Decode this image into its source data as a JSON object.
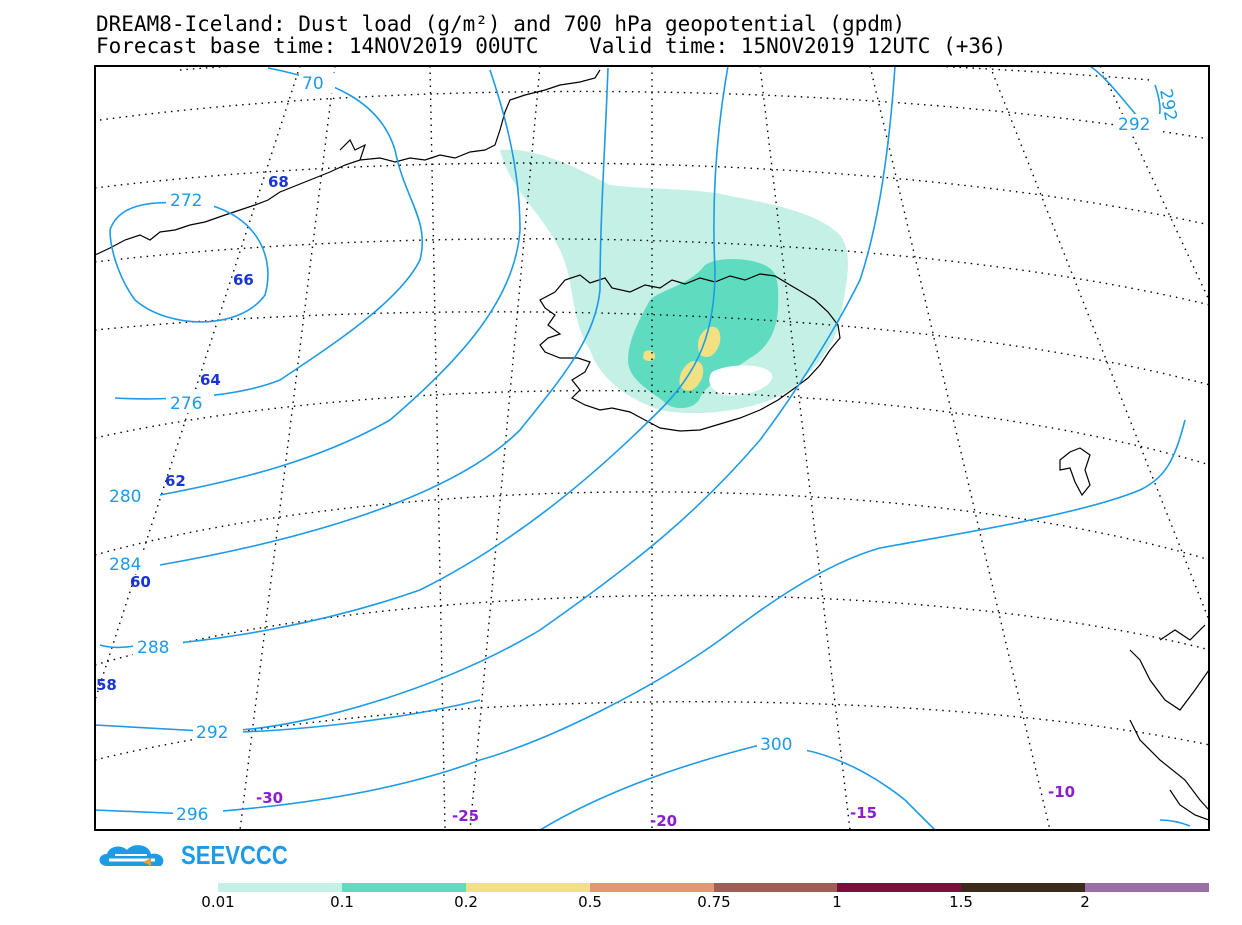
{
  "header": {
    "title_line1": "DREAM8-Iceland: Dust load (g/m²) and 700 hPa geopotential (gpdm)",
    "title_line2": "Forecast base time: 14NOV2019 00UTC    Valid time: 15NOV2019 12UTC (+36)"
  },
  "map": {
    "geopotential_labels": [
      "70",
      "272",
      "276",
      "280",
      "284",
      "288",
      "292",
      "296",
      "300",
      "292",
      "292"
    ],
    "latitude_labels": [
      "68",
      "66",
      "64",
      "62",
      "60",
      "58"
    ],
    "longitude_labels": [
      "-30",
      "-25",
      "-20",
      "-15",
      "-10"
    ],
    "colors": {
      "contour": "#1e9be6",
      "latitude_label": "#1a35d6",
      "longitude_label": "#8a1ed0",
      "dust_0_01": "#c4f0e6",
      "dust_0_1": "#5fdcc0",
      "dust_0_2": "#f2e182",
      "dust_0_5": "#e89474"
    }
  },
  "logo": {
    "text": "SEEVCCC"
  },
  "legend": {
    "colors": [
      "#c4f0e6",
      "#5fdcc0",
      "#f2e182",
      "#e89474",
      "#a85a54",
      "#7c0e3c",
      "#3e2a1c",
      "#9a6fa6"
    ],
    "tick_labels": [
      "0.01",
      "0.1",
      "0.2",
      "0.5",
      "0.75",
      "1",
      "1.5",
      "2"
    ]
  }
}
